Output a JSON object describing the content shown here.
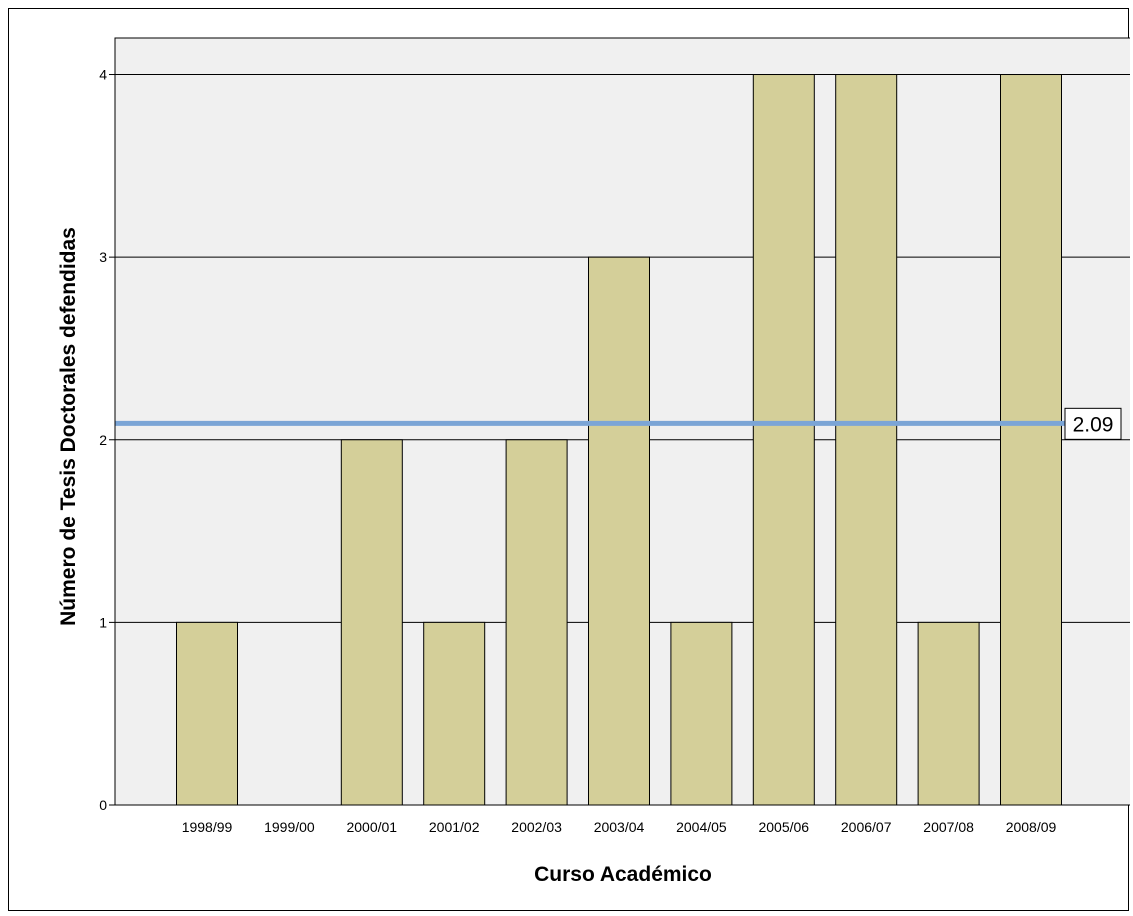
{
  "chart_data": {
    "type": "bar",
    "xlabel": "Curso Académico",
    "ylabel": "Número de Tesis Doctorales defendidas",
    "categories": [
      "1998/99",
      "1999/00",
      "2000/01",
      "2001/02",
      "2002/03",
      "2003/04",
      "2004/05",
      "2005/06",
      "2006/07",
      "2007/08",
      "2008/09"
    ],
    "values": [
      1,
      0,
      2,
      1,
      2,
      3,
      1,
      4,
      4,
      1,
      4
    ],
    "ylim": [
      0,
      4.2
    ],
    "yticks": [
      0,
      1,
      2,
      3,
      4
    ],
    "grid": true,
    "reference_line": {
      "value": 2.09,
      "label": "2.09",
      "color": "#7ba5d6"
    },
    "colors": {
      "bar": "#d4cf99",
      "plot_background": "#f0f0f0"
    }
  }
}
